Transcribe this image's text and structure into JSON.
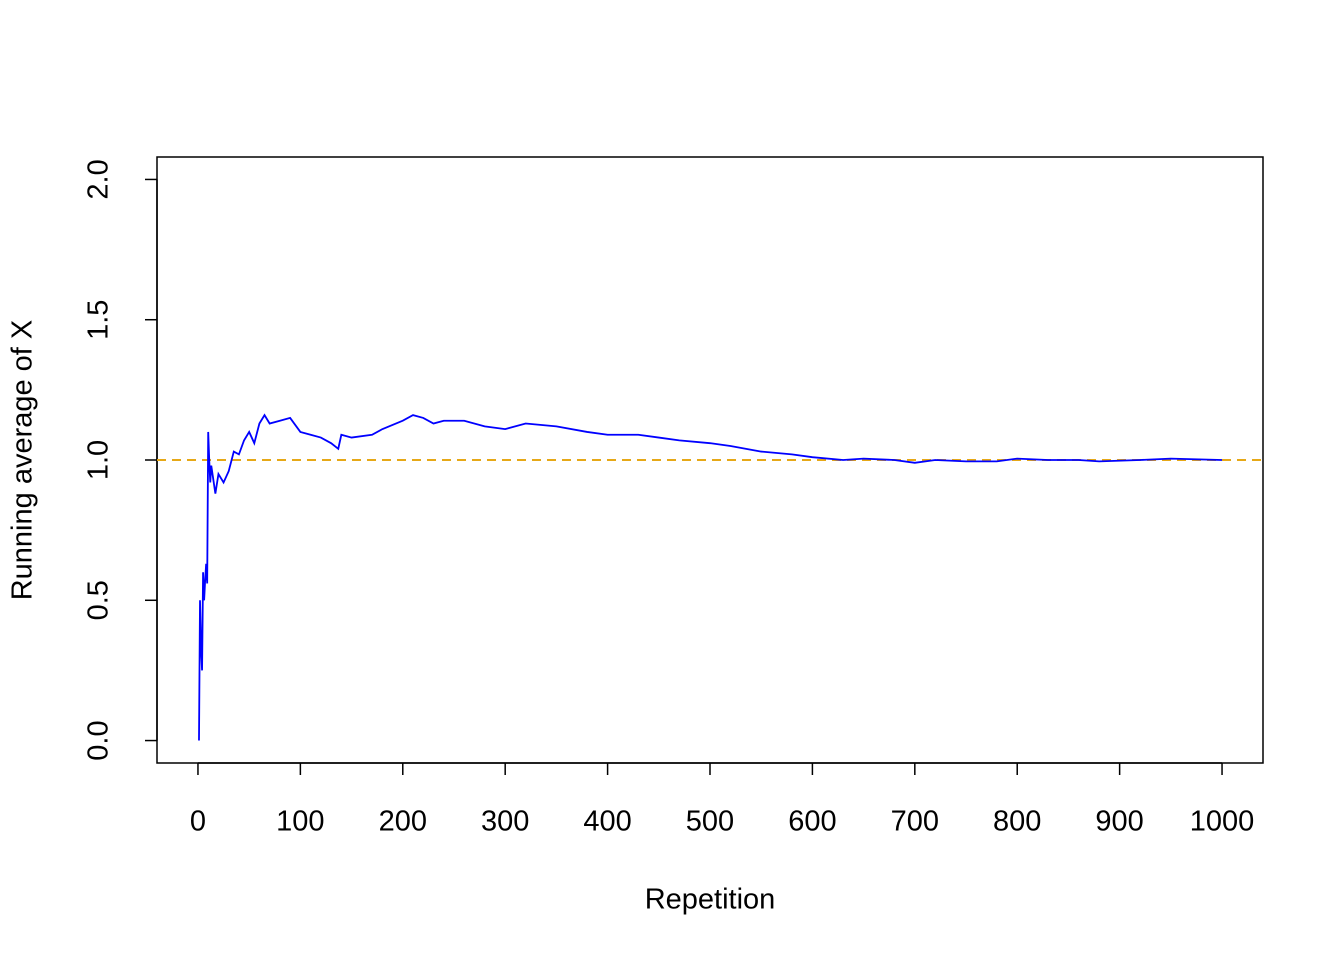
{
  "chart_data": {
    "type": "line",
    "xlabel": "Repetition",
    "ylabel": "Running average of X",
    "series": [
      {
        "name": "Running average",
        "color": "#0000ff",
        "x": [
          1,
          2,
          3,
          4,
          5,
          6,
          7,
          8,
          9,
          10,
          11,
          12,
          13,
          15,
          17,
          20,
          25,
          30,
          35,
          40,
          45,
          50,
          55,
          60,
          65,
          70,
          80,
          90,
          100,
          110,
          120,
          130,
          137,
          140,
          150,
          170,
          180,
          200,
          210,
          220,
          230,
          240,
          260,
          280,
          300,
          320,
          350,
          380,
          400,
          430,
          450,
          470,
          500,
          520,
          550,
          580,
          600,
          630,
          650,
          680,
          700,
          720,
          750,
          780,
          800,
          830,
          860,
          880,
          920,
          950,
          1000
        ],
        "values": [
          0,
          0.5,
          0.33,
          0.25,
          0.6,
          0.5,
          0.57,
          0.63,
          0.56,
          1.1,
          1.0,
          0.92,
          0.98,
          0.93,
          0.88,
          0.95,
          0.92,
          0.96,
          1.03,
          1.02,
          1.07,
          1.1,
          1.06,
          1.13,
          1.16,
          1.13,
          1.14,
          1.15,
          1.1,
          1.09,
          1.08,
          1.06,
          1.04,
          1.09,
          1.08,
          1.09,
          1.11,
          1.14,
          1.16,
          1.15,
          1.13,
          1.14,
          1.14,
          1.12,
          1.11,
          1.13,
          1.12,
          1.1,
          1.09,
          1.09,
          1.08,
          1.07,
          1.06,
          1.05,
          1.03,
          1.02,
          1.01,
          1.0,
          1.005,
          1.0,
          0.99,
          1.0,
          0.995,
          0.995,
          1.005,
          1.0,
          1.0,
          0.995,
          1.0,
          1.005,
          1.0
        ]
      }
    ],
    "hline": 1,
    "hline_color": "#e6a817",
    "xlim": [
      -40,
      1040
    ],
    "ylim": [
      -0.08,
      2.08
    ],
    "xticks": [
      0,
      100,
      200,
      300,
      400,
      500,
      600,
      700,
      800,
      900,
      1000
    ],
    "yticks": [
      {
        "value": 0,
        "label": "0.0"
      },
      0.5,
      {
        "value": 1,
        "label": "1.0"
      },
      1.5,
      {
        "value": 2,
        "label": "2.0"
      }
    ]
  }
}
